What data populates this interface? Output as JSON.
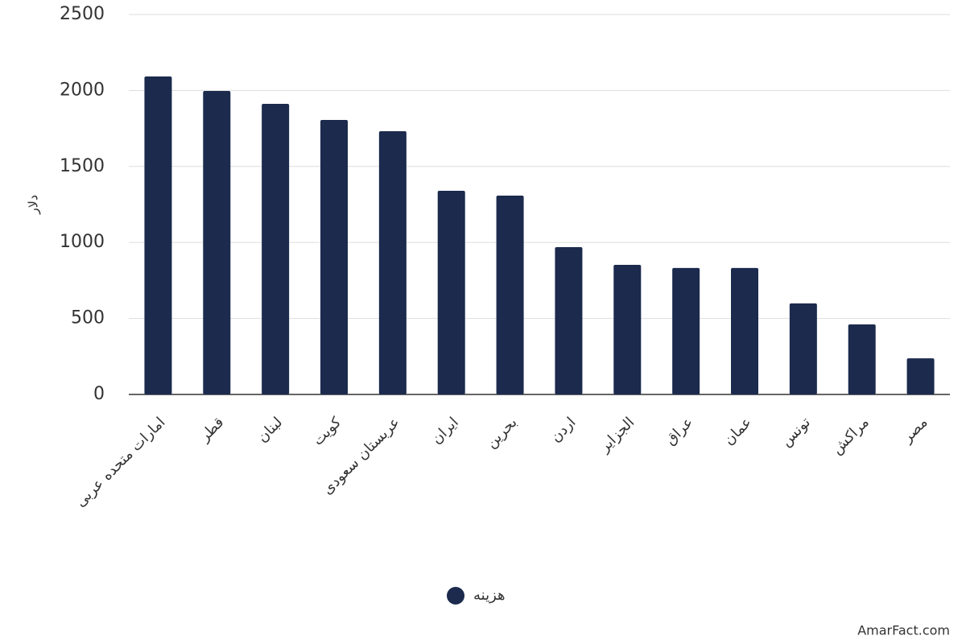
{
  "chart_data": {
    "type": "bar",
    "y_label": "دلار",
    "categories": [
      "امارات متحده عربی",
      "قطر",
      "لبنان",
      "کویت",
      "عربستان سعودی",
      "ایران",
      "بحرین",
      "اردن",
      "الجزایر",
      "عراق",
      "عمان",
      "تونس",
      "مراکش",
      "مصر"
    ],
    "series": [
      {
        "name": "هزینه",
        "color": "#1b2a4d",
        "values": [
          2092,
          1997,
          1912,
          1806,
          1732,
          1340,
          1308,
          969,
          853,
          832,
          832,
          599,
          461,
          238
        ]
      }
    ],
    "ylim": [
      0,
      2500
    ],
    "yticks": [
      0,
      500,
      1000,
      1500,
      2000,
      2500
    ],
    "grid": true,
    "legend": "bottom"
  },
  "watermark": "AmarFact.com"
}
